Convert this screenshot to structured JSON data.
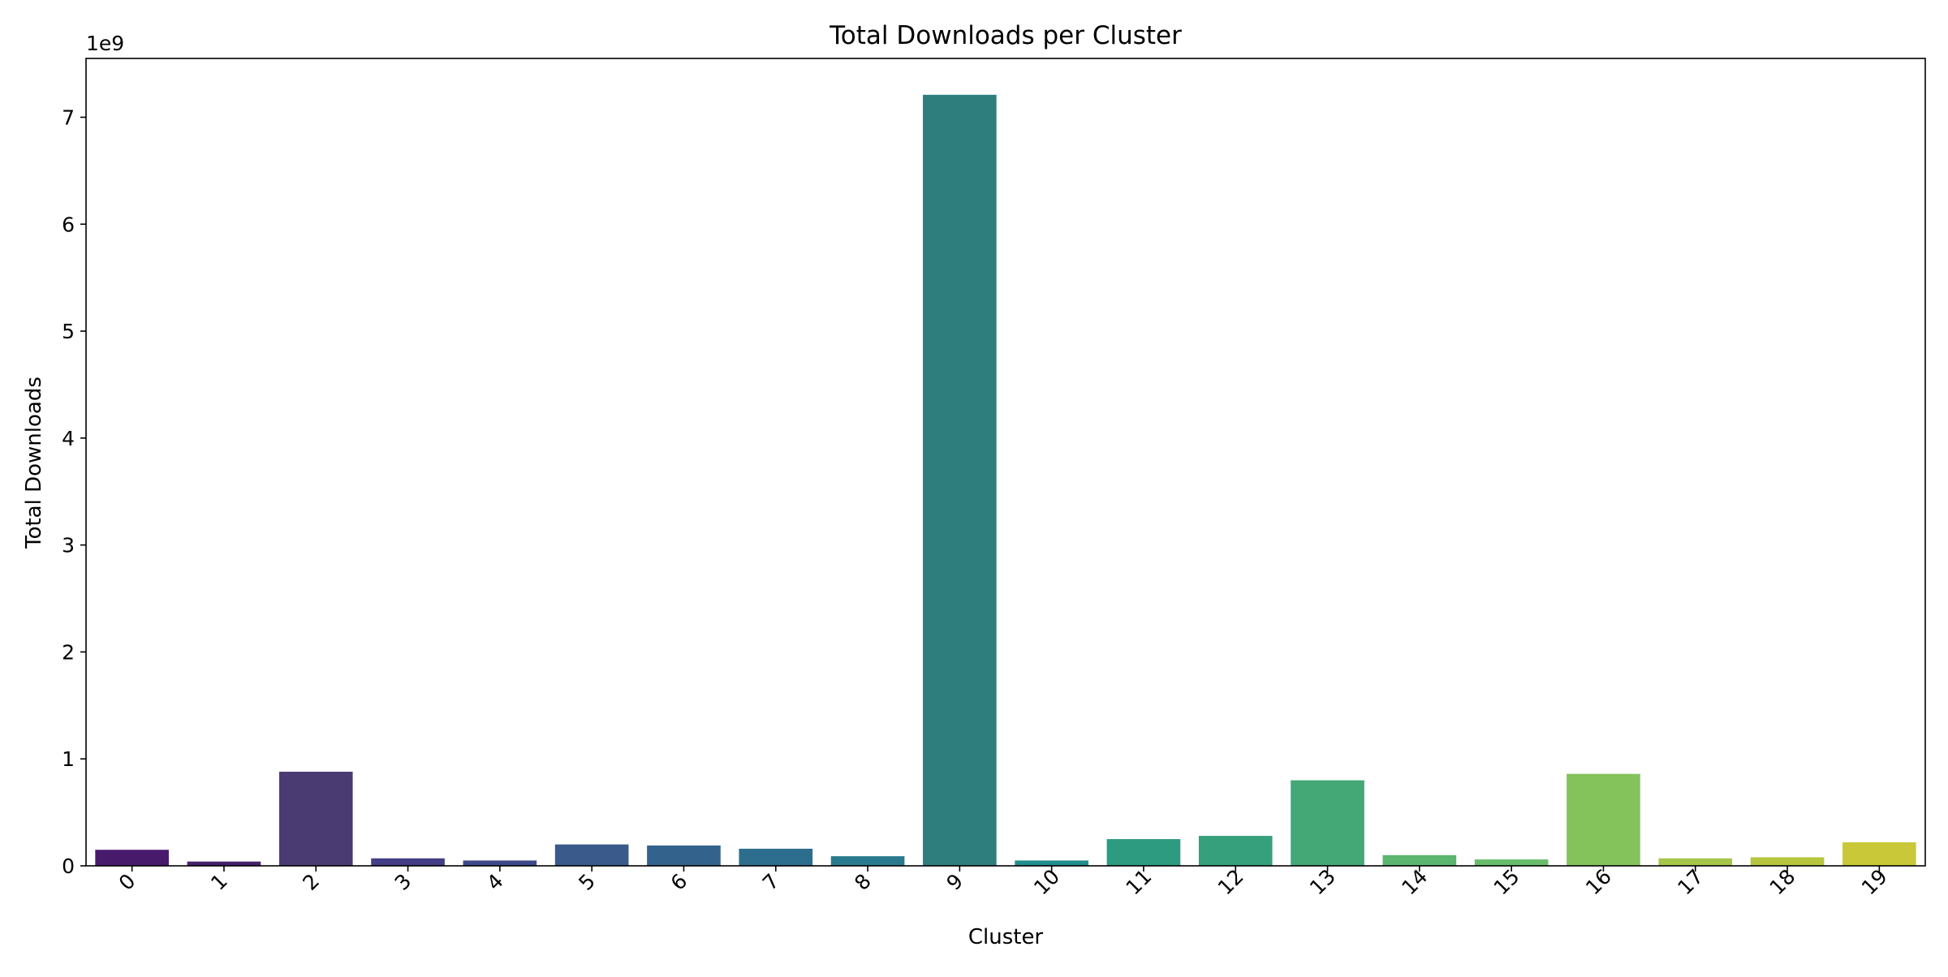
{
  "chart_data": {
    "type": "bar",
    "title": "Total Downloads per Cluster",
    "xlabel": "Cluster",
    "ylabel": "Total Downloads",
    "y_offset_label": "1e9",
    "ylim": [
      0,
      7.55
    ],
    "y_ticks": [
      0,
      1,
      2,
      3,
      4,
      5,
      6,
      7
    ],
    "grid": false,
    "categories": [
      "0",
      "1",
      "2",
      "3",
      "4",
      "5",
      "6",
      "7",
      "8",
      "9",
      "10",
      "11",
      "12",
      "13",
      "14",
      "15",
      "16",
      "17",
      "18",
      "19"
    ],
    "values": [
      0.15,
      0.04,
      0.88,
      0.07,
      0.05,
      0.2,
      0.19,
      0.16,
      0.09,
      7.21,
      0.05,
      0.25,
      0.28,
      0.8,
      0.1,
      0.06,
      0.86,
      0.07,
      0.08,
      0.22
    ],
    "colors": [
      "#481a6c",
      "#47216c",
      "#4a3b72",
      "#433e85",
      "#3e4989",
      "#3a5a8c",
      "#33638d",
      "#2d6e8e",
      "#297a8e",
      "#2e7e7e",
      "#218f8d",
      "#2d9b80",
      "#36a07d",
      "#43a876",
      "#5ab56f",
      "#67bd6b",
      "#84c35c",
      "#a5c64a",
      "#b6c63f",
      "#c8c838"
    ]
  }
}
